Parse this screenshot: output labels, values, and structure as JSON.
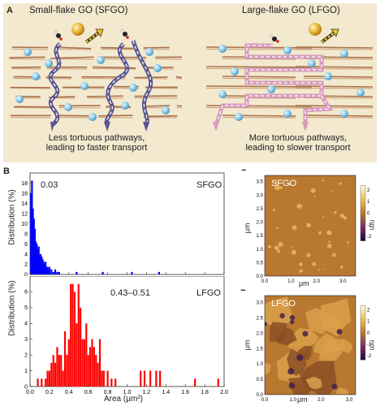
{
  "panel_a": {
    "label": "A",
    "left_title": "Small-flake GO (SFGO)",
    "right_title": "Large-flake GO (LFGO)",
    "left_caption_1": "Less tortuous pathways,",
    "left_caption_2": "leading to faster transport",
    "right_caption_1": "More tortuous pathways,",
    "right_caption_2": "leading to slower transport",
    "bg_color": "#f3e9cf"
  },
  "panel_b": {
    "label": "B",
    "sfgo_tag": "SFGO",
    "sfgo_value": "0.03",
    "lfgo_tag": "LFGO",
    "lfgo_value": "0.43–0.51",
    "ylabel": "Distribution (%)",
    "xlabel": "Area (μm²)"
  },
  "panel_c": {
    "label": "C",
    "tag": "SFGO",
    "ylabel": "μm",
    "xlabel": "μm",
    "cbar_unit": "nm"
  },
  "panel_d": {
    "label": "D",
    "tag": "LFGO",
    "ylabel": "μm",
    "xlabel": "μm",
    "cbar_unit": "nm"
  },
  "chart_data": [
    {
      "type": "bar",
      "name": "SFGO",
      "color": "#0000ff",
      "xlim": [
        0,
        2.0
      ],
      "ylim": [
        0,
        20
      ],
      "xticks": [
        "0.0",
        "0.2",
        "0.4",
        "0.6",
        "0.8",
        "1.0",
        "1.2",
        "1.4",
        "1.6",
        "1.8",
        "2.0"
      ],
      "yticks": [
        "0",
        "2",
        "4",
        "6",
        "8",
        "10",
        "12",
        "14",
        "16",
        "18"
      ],
      "x": [
        0.01,
        0.02,
        0.03,
        0.04,
        0.05,
        0.06,
        0.07,
        0.08,
        0.09,
        0.1,
        0.11,
        0.12,
        0.13,
        0.14,
        0.15,
        0.16,
        0.17,
        0.18,
        0.19,
        0.2,
        0.22,
        0.24,
        0.26,
        0.28,
        0.3,
        0.48,
        0.75,
        1.05,
        1.33
      ],
      "values": [
        16,
        18.5,
        13,
        11,
        9,
        6.5,
        6,
        5,
        5.5,
        4,
        4,
        3.5,
        3,
        2.5,
        2,
        2.5,
        1.5,
        1.5,
        1,
        1.5,
        1,
        0.5,
        1,
        0.5,
        0.5,
        0.5,
        0.5,
        0.5,
        0.5
      ]
    },
    {
      "type": "bar",
      "name": "LFGO",
      "color": "#ff0000",
      "xlim": [
        0,
        2.0
      ],
      "ylim": [
        0,
        7
      ],
      "xticks": [
        "0.0",
        "0.2",
        "0.4",
        "0.6",
        "0.8",
        "1.0",
        "1.2",
        "1.4",
        "1.6",
        "1.8",
        "2.0"
      ],
      "yticks": [
        "0",
        "1",
        "2",
        "3",
        "4",
        "5",
        "6"
      ],
      "x": [
        0.08,
        0.12,
        0.16,
        0.18,
        0.2,
        0.22,
        0.24,
        0.26,
        0.28,
        0.3,
        0.32,
        0.34,
        0.36,
        0.38,
        0.4,
        0.42,
        0.44,
        0.46,
        0.48,
        0.5,
        0.52,
        0.54,
        0.56,
        0.58,
        0.6,
        0.62,
        0.64,
        0.66,
        0.68,
        0.7,
        0.72,
        0.74,
        0.76,
        0.8,
        0.84,
        0.88,
        1.14,
        1.18,
        1.24,
        1.3,
        1.34,
        1.7,
        1.94
      ],
      "values": [
        0.5,
        0.5,
        0.5,
        1,
        1,
        1.5,
        2,
        1.5,
        2.5,
        2,
        2,
        1,
        3.5,
        2,
        3,
        6.5,
        6.5,
        6,
        4,
        6.5,
        5,
        3,
        3,
        4,
        2,
        2.5,
        3,
        2.5,
        2,
        1.5,
        3,
        1,
        1,
        1,
        0.5,
        0.5,
        1,
        1,
        1,
        1,
        1,
        0.5,
        0.5
      ]
    },
    {
      "type": "heatmap",
      "name": "SFGO AFM",
      "xticks": [
        "0.0",
        "1.0",
        "2.0",
        "3.0"
      ],
      "yticks": [
        "0.0",
        "0.5",
        "1.0",
        "1.5",
        "2.0",
        "2.5",
        "3.0",
        "3.5"
      ],
      "cbar_ticks": [
        "2",
        "1",
        "0",
        "-1",
        "-2"
      ]
    },
    {
      "type": "heatmap",
      "name": "LFGO AFM",
      "xticks": [
        "0.0",
        "1.0",
        "2.0",
        "3.0"
      ],
      "yticks": [
        "0.0",
        "0.5",
        "1.0",
        "1.5",
        "2.0",
        "2.5",
        "3.0"
      ],
      "cbar_ticks": [
        "2",
        "1",
        "0",
        "-1",
        "-2"
      ]
    }
  ]
}
